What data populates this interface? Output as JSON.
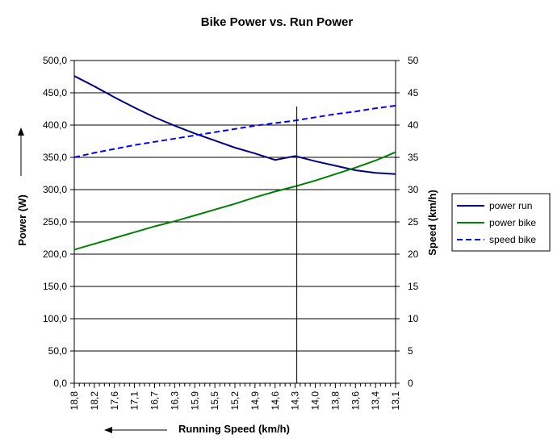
{
  "chart_data": {
    "type": "line",
    "title": "Bike Power vs. Run Power",
    "xlabel": "Running Speed (km/h)",
    "ylabel": "Power (W)",
    "y2label": "Speed (km/h)",
    "x_tick_labels": [
      "18,8",
      "18,2",
      "17,6",
      "17,1",
      "16,7",
      "16,3",
      "15,9",
      "15,5",
      "15,2",
      "14,9",
      "14,6",
      "14,3",
      "14,0",
      "13,8",
      "13,6",
      "13,4",
      "13,1"
    ],
    "ylim": [
      0,
      500
    ],
    "y_ticks": [
      "0,0",
      "50,0",
      "100,0",
      "150,0",
      "200,0",
      "250,0",
      "300,0",
      "350,0",
      "400,0",
      "450,0",
      "500,0"
    ],
    "y2lim": [
      0,
      50
    ],
    "y2_ticks": [
      "0",
      "5",
      "10",
      "15",
      "20",
      "25",
      "30",
      "35",
      "40",
      "45",
      "50"
    ],
    "grid": true,
    "legend_position": "right",
    "marker_category": "14,3",
    "series": [
      {
        "name": "power run",
        "axis": "left",
        "color": "#000080",
        "dash": "solid",
        "values": [
          476,
          460,
          443,
          427,
          412,
          399,
          387,
          376,
          365,
          356,
          346,
          352,
          344,
          337,
          330,
          326,
          324
        ]
      },
      {
        "name": "power bike",
        "axis": "left",
        "color": "#008000",
        "dash": "solid",
        "values": [
          207,
          216,
          225,
          234,
          243,
          251,
          260,
          269,
          278,
          288,
          297,
          305,
          314,
          324,
          334,
          345,
          358
        ]
      },
      {
        "name": "speed bike",
        "axis": "right",
        "color": "#0000FF",
        "dash": "dashed",
        "values": [
          35.0,
          35.7,
          36.3,
          36.9,
          37.4,
          37.9,
          38.4,
          38.9,
          39.4,
          39.9,
          40.3,
          40.7,
          41.2,
          41.7,
          42.1,
          42.6,
          43.0
        ]
      }
    ]
  }
}
